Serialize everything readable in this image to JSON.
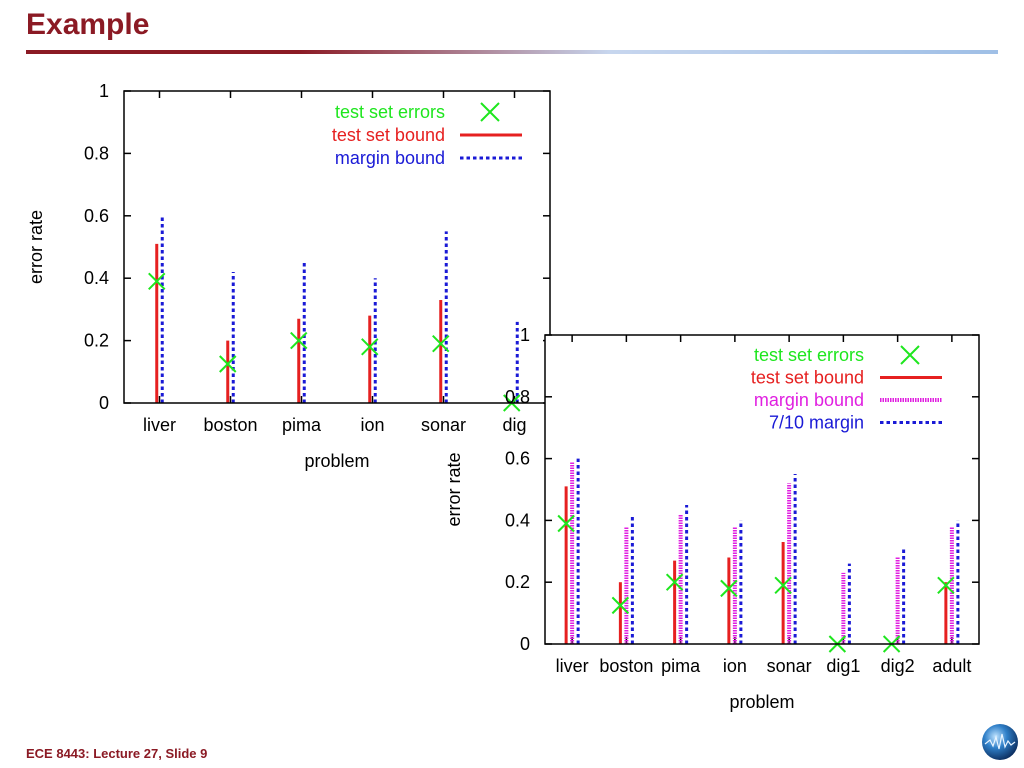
{
  "slide": {
    "title": "Example",
    "footer": "ECE 8443: Lecture 27, Slide 9"
  },
  "chart_data": [
    {
      "type": "bar",
      "xlabel": "problem",
      "ylabel": "error rate",
      "ylim": [
        0,
        1
      ],
      "yticks": [
        "0",
        "0.2",
        "0.4",
        "0.6",
        "0.8",
        "1"
      ],
      "categories": [
        "liver",
        "boston",
        "pima",
        "ion",
        "sonar",
        "dig"
      ],
      "legend_position": "top-right",
      "series": [
        {
          "name": "test set errors",
          "kind": "marker",
          "color": "#1ee61e",
          "values": [
            0.39,
            0.125,
            0.2,
            0.18,
            0.19,
            0.0
          ]
        },
        {
          "name": "test set bound",
          "kind": "solid",
          "color": "#e62020",
          "values": [
            0.51,
            0.2,
            0.27,
            0.28,
            0.33,
            null
          ]
        },
        {
          "name": "margin bound",
          "kind": "dotted",
          "color": "#1a1ad6",
          "values": [
            0.6,
            0.42,
            0.45,
            0.4,
            0.55,
            0.26
          ]
        }
      ]
    },
    {
      "type": "bar",
      "xlabel": "problem",
      "ylabel": "error rate",
      "ylim": [
        0,
        1
      ],
      "yticks": [
        "0",
        "0.2",
        "0.4",
        "0.6",
        "0.8",
        "1"
      ],
      "categories": [
        "liver",
        "boston",
        "pima",
        "ion",
        "sonar",
        "dig1",
        "dig2",
        "adult"
      ],
      "legend_position": "top-right",
      "series": [
        {
          "name": "test set errors",
          "kind": "marker",
          "color": "#1ee61e",
          "values": [
            0.39,
            0.125,
            0.2,
            0.18,
            0.19,
            0.0,
            0.0,
            0.19
          ]
        },
        {
          "name": "test set bound",
          "kind": "solid",
          "color": "#e62020",
          "values": [
            0.51,
            0.2,
            0.27,
            0.28,
            0.33,
            null,
            null,
            0.2
          ]
        },
        {
          "name": "margin bound",
          "kind": "dense",
          "color": "#e020e0",
          "values": [
            0.59,
            0.38,
            0.42,
            0.38,
            0.52,
            0.23,
            0.28,
            0.38
          ]
        },
        {
          "name": "7/10 margin",
          "kind": "dotted",
          "color": "#1a1ad6",
          "values": [
            0.6,
            0.42,
            0.45,
            0.4,
            0.55,
            0.26,
            0.31,
            0.4
          ]
        }
      ]
    }
  ]
}
